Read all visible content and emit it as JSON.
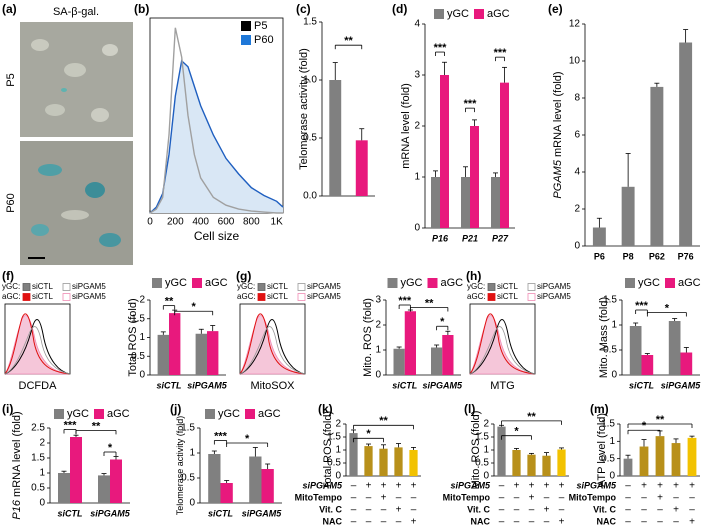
{
  "panel_a": {
    "label": "(a)",
    "title": "SA-β-gal.",
    "rows": [
      "P5",
      "P60"
    ]
  },
  "chart_data": [
    {
      "label": "(b)",
      "type": "line",
      "xlabel": "Cell size",
      "x": [
        0,
        50,
        100,
        150,
        200,
        250,
        300,
        350,
        400,
        500,
        600,
        700,
        800,
        900,
        1000,
        1050
      ],
      "xlim": [
        0,
        1050
      ],
      "xticks": [
        0,
        200,
        400,
        600,
        800,
        {
          "value": 1000,
          "label": "1K"
        }
      ],
      "ylim": [
        0,
        100
      ],
      "legend": "upper right",
      "series": [
        {
          "name": "P5",
          "color": "#000000",
          "line_color": "#a0a0a0",
          "values": [
            0,
            2,
            8,
            40,
            95,
            80,
            50,
            30,
            18,
            8,
            4,
            2,
            1,
            0.5,
            0,
            0
          ]
        },
        {
          "name": "P60",
          "color": "#1f78d8",
          "line_color": "#1f5fc0",
          "fill": "#d9e7f5",
          "values": [
            0,
            3,
            10,
            30,
            60,
            78,
            75,
            65,
            55,
            40,
            28,
            20,
            13,
            9,
            6,
            3
          ]
        }
      ]
    },
    {
      "label": "(c)",
      "type": "bar",
      "ylabel": "Telomerase activity (fold)",
      "categories": [
        null,
        null
      ],
      "values": [
        1.0,
        0.48
      ],
      "errors": [
        0.15,
        0.1
      ],
      "colors": [
        "#808080",
        "#e8197d"
      ],
      "ylim": [
        0,
        1.5
      ],
      "yticks": [
        {
          "value": 0,
          "label": "0.0"
        },
        0.5,
        {
          "value": 1,
          "label": "1.0"
        },
        1.5
      ],
      "annotations": [
        "**"
      ]
    },
    {
      "label": "(d)",
      "type": "bar",
      "ylabel": "mRNA level (fold)",
      "categories": [
        "P16",
        "P21",
        "P27"
      ],
      "italic_categories": true,
      "series": [
        {
          "name": "yGC",
          "color": "#808080",
          "values": [
            1,
            1,
            1
          ],
          "errors": [
            0.12,
            0.2,
            0.08
          ]
        },
        {
          "name": "aGC",
          "color": "#e8197d",
          "values": [
            3.0,
            2.0,
            2.85
          ],
          "errors": [
            0.25,
            0.12,
            0.3
          ]
        }
      ],
      "ylim": [
        0,
        4
      ],
      "yticks": [
        0,
        1,
        2,
        3,
        4
      ],
      "annotations": [
        "***",
        "***",
        "***"
      ]
    },
    {
      "label": "(e)",
      "type": "bar",
      "ylabel_italic": "PGAM5",
      "ylabel": "mRNA level (fold)",
      "categories": [
        "P6",
        "P8",
        "P62",
        "P76"
      ],
      "values": [
        1,
        3.2,
        8.6,
        11
      ],
      "errors": [
        0.5,
        1.8,
        0.2,
        0.7
      ],
      "colors": [
        "#808080",
        "#808080",
        "#808080",
        "#808080"
      ],
      "ylim": [
        0,
        12
      ],
      "yticks": [
        0,
        2,
        4,
        6,
        8,
        10,
        12
      ]
    },
    {
      "label": "(f)",
      "type": "bar",
      "ylabel": "Total ROS (fold)",
      "categories": [
        "siCTL",
        "siPGAM5"
      ],
      "italic_categories": true,
      "series": [
        {
          "name": "yGC",
          "color": "#808080",
          "values": [
            1.07,
            1.1
          ],
          "errors": [
            0.08,
            0.12
          ]
        },
        {
          "name": "aGC",
          "color": "#e8197d",
          "values": [
            1.65,
            1.17
          ],
          "errors": [
            0.08,
            0.15
          ]
        }
      ],
      "ylim": [
        0,
        2
      ],
      "yticks": [
        0,
        0.5,
        1,
        1.5,
        2
      ],
      "annotations": [
        "**",
        "*"
      ],
      "flow": {
        "xlabel": "DCFDA",
        "legend": [
          {
            "name": "yGC:",
            "items": [
              "siCTL",
              "siPGAM5"
            ]
          },
          {
            "name": "aGC:",
            "items": [
              "siCTL",
              "siPGAM5"
            ]
          }
        ]
      }
    },
    {
      "label": "(g)",
      "type": "bar",
      "ylabel": "Mito. ROS (fold)",
      "categories": [
        "siCTL",
        "siPGAM5"
      ],
      "italic_categories": true,
      "series": [
        {
          "name": "yGC",
          "color": "#808080",
          "values": [
            1.05,
            1.1
          ],
          "errors": [
            0.07,
            0.1
          ]
        },
        {
          "name": "aGC",
          "color": "#e8197d",
          "values": [
            2.55,
            1.6
          ],
          "errors": [
            0.05,
            0.15
          ]
        }
      ],
      "ylim": [
        0,
        3
      ],
      "yticks": [
        0,
        1,
        2,
        3
      ],
      "annotations": [
        "***",
        "**",
        "*"
      ],
      "flow": {
        "xlabel": "MitoSOX",
        "legend": [
          {
            "name": "yGC:",
            "items": [
              "siCTL",
              "siPGAM5"
            ]
          },
          {
            "name": "aGC:",
            "items": [
              "siCTL",
              "siPGAM5"
            ]
          }
        ]
      }
    },
    {
      "label": "(h)",
      "type": "bar",
      "ylabel": "Mito. Mass (fold)",
      "categories": [
        "siCTL",
        "siPGAM5"
      ],
      "italic_categories": true,
      "series": [
        {
          "name": "yGC",
          "color": "#808080",
          "values": [
            0.98,
            1.08
          ],
          "errors": [
            0.06,
            0.05
          ]
        },
        {
          "name": "aGC",
          "color": "#e8197d",
          "values": [
            0.4,
            0.45
          ],
          "errors": [
            0.03,
            0.1
          ]
        }
      ],
      "ylim": [
        0,
        1.5
      ],
      "yticks": [
        0,
        0.5,
        1,
        1.5
      ],
      "annotations": [
        "***",
        "*"
      ],
      "flow": {
        "xlabel": "MTG",
        "legend": [
          {
            "name": "yGC:",
            "items": [
              "siCTL",
              "siPGAM5"
            ]
          },
          {
            "name": "aGC:",
            "items": [
              "siCTL",
              "siPGAM5"
            ]
          }
        ]
      }
    },
    {
      "label": "(i)",
      "type": "bar",
      "ylabel_italic": "P16",
      "ylabel": "mRNA level (fold)",
      "categories": [
        "siCTL",
        "siPGAM5"
      ],
      "italic_categories": true,
      "series": [
        {
          "name": "yGC",
          "color": "#808080",
          "values": [
            1.0,
            0.92
          ],
          "errors": [
            0.06,
            0.06
          ]
        },
        {
          "name": "aGC",
          "color": "#e8197d",
          "values": [
            2.2,
            1.45
          ],
          "errors": [
            0.06,
            0.1
          ]
        }
      ],
      "ylim": [
        0,
        2.5
      ],
      "yticks": [
        0,
        0.5,
        1,
        1.5,
        2,
        2.5
      ],
      "annotations": [
        "***",
        "**",
        "*"
      ]
    },
    {
      "label": "(j)",
      "type": "bar",
      "ylabel": "Telomerase activity (fold)",
      "categories": [
        "siCTL",
        "siPGAM5"
      ],
      "italic_categories": true,
      "series": [
        {
          "name": "yGC",
          "color": "#808080",
          "values": [
            0.98,
            0.93
          ],
          "errors": [
            0.06,
            0.18
          ]
        },
        {
          "name": "aGC",
          "color": "#e8197d",
          "values": [
            0.4,
            0.68
          ],
          "errors": [
            0.05,
            0.1
          ]
        }
      ],
      "ylim": [
        0,
        1.5
      ],
      "yticks": [
        0,
        0.5,
        1,
        1.5
      ],
      "annotations": [
        "***",
        "*"
      ]
    },
    {
      "label": "(k)",
      "type": "bar",
      "ylabel": "Total ROS (fold)",
      "categories": [
        null,
        null,
        null,
        null,
        null
      ],
      "values": [
        1.65,
        1.15,
        1.05,
        1.1,
        1.0
      ],
      "errors": [
        0.12,
        0.08,
        0.15,
        0.15,
        0.1
      ],
      "colors": [
        "#808080",
        "#b8901a",
        "#b8901a",
        "#b8901a",
        "#f2c200"
      ],
      "ylim": [
        0,
        2
      ],
      "yticks": [
        0,
        0.5,
        1,
        1.5,
        2
      ],
      "annotations": [
        "*",
        "**"
      ],
      "treatments": [
        {
          "name": "siPGAM5",
          "italic": true,
          "signs": [
            "–",
            "+",
            "+",
            "+",
            "+"
          ]
        },
        {
          "name": "MitoTempo",
          "signs": [
            "–",
            "–",
            "+",
            "–",
            "–"
          ]
        },
        {
          "name": "Vit. C",
          "signs": [
            "–",
            "–",
            "–",
            "+",
            "–"
          ]
        },
        {
          "name": "NAC",
          "signs": [
            "–",
            "–",
            "–",
            "–",
            "+"
          ]
        }
      ]
    },
    {
      "label": "(l)",
      "type": "bar",
      "ylabel": "Mito. ROS (fold)",
      "categories": [
        null,
        null,
        null,
        null,
        null
      ],
      "values": [
        1.9,
        1.0,
        0.82,
        0.78,
        1.02
      ],
      "errors": [
        0.05,
        0.06,
        0.05,
        0.12,
        0.06
      ],
      "colors": [
        "#808080",
        "#b8901a",
        "#b8901a",
        "#b8901a",
        "#f2c200"
      ],
      "ylim": [
        0,
        2
      ],
      "yticks": [
        0,
        0.5,
        1,
        1.5,
        2
      ],
      "annotations": [
        "*",
        "**"
      ],
      "treatments": [
        {
          "name": "siPGAM5",
          "italic": true,
          "signs": [
            "–",
            "+",
            "+",
            "+",
            "+"
          ]
        },
        {
          "name": "MitoTempo",
          "signs": [
            "–",
            "–",
            "+",
            "–",
            "–"
          ]
        },
        {
          "name": "Vit. C",
          "signs": [
            "–",
            "–",
            "–",
            "+",
            "–"
          ]
        },
        {
          "name": "NAC",
          "signs": [
            "–",
            "–",
            "–",
            "–",
            "+"
          ]
        }
      ]
    },
    {
      "label": "(m)",
      "type": "bar",
      "ylabel": "ATP level (fold)",
      "categories": [
        null,
        null,
        null,
        null,
        null
      ],
      "values": [
        0.5,
        0.85,
        1.15,
        0.95,
        1.1
      ],
      "errors": [
        0.1,
        0.2,
        0.15,
        0.12,
        0.05
      ],
      "colors": [
        "#808080",
        "#b8901a",
        "#b8901a",
        "#b8901a",
        "#f2c200"
      ],
      "ylim": [
        0,
        1.5
      ],
      "yticks": [
        0,
        0.5,
        1,
        1.5
      ],
      "annotations": [
        "*",
        "**"
      ],
      "treatments": [
        {
          "name": "siPGAM5",
          "italic": true,
          "signs": [
            "–",
            "+",
            "+",
            "+",
            "+"
          ]
        },
        {
          "name": "MitoTempo",
          "signs": [
            "–",
            "–",
            "+",
            "–",
            "–"
          ]
        },
        {
          "name": "Vit. C",
          "signs": [
            "–",
            "–",
            "–",
            "+",
            "–"
          ]
        },
        {
          "name": "NAC",
          "signs": [
            "–",
            "–",
            "–",
            "–",
            "+"
          ]
        }
      ]
    }
  ]
}
